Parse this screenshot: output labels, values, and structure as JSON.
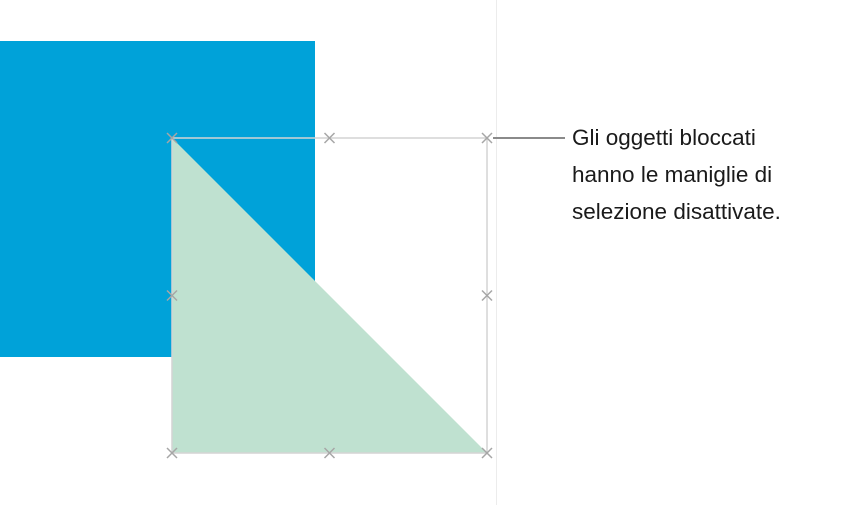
{
  "colors": {
    "blue_square": "#00a2d9",
    "triangle": "#bfe1d0",
    "handle": "#a6a6a6",
    "selection_border": "#d4d4d4",
    "callout_line": "#8a8a8a"
  },
  "callout": {
    "lines": [
      "Gli oggetti bloccati",
      "hanno le maniglie di",
      "selezione disattivate."
    ]
  },
  "handles": {
    "icon": "x-mark-icon",
    "state": "locked"
  }
}
